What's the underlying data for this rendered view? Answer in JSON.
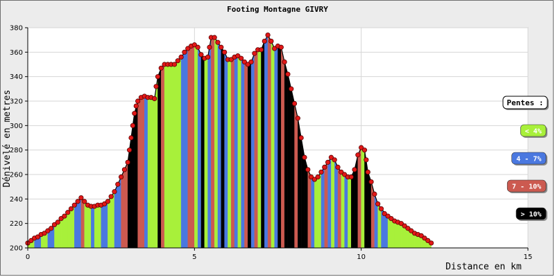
{
  "chart_data": {
    "type": "area",
    "title": "Footing Montagne GIVRY",
    "xlabel": "Distance en km",
    "ylabel": "Dénivelé en metres",
    "xlim": [
      0,
      15
    ],
    "ylim": [
      200,
      380
    ],
    "x_ticks": [
      0,
      5,
      10,
      15
    ],
    "y_ticks": [
      200,
      220,
      240,
      260,
      280,
      300,
      320,
      340,
      360,
      380
    ],
    "grid": "horizontal",
    "legend_position": "right",
    "legend": {
      "title": "Pentes :",
      "entries": [
        {
          "label": "< 4%",
          "color": "#a8f03a",
          "text_color": "#ffffff"
        },
        {
          "label": "4 - 7%",
          "color": "#4a78e0",
          "text_color": "#ffffff"
        },
        {
          "label": "7 - 10%",
          "color": "#cc5a50",
          "text_color": "#ffffff"
        },
        {
          "label": "> 10%",
          "color": "#000000",
          "text_color": "#ffffff"
        }
      ]
    },
    "series": [
      {
        "x": [
          0.0,
          0.2,
          0.4,
          0.6,
          0.8,
          1.0,
          1.2,
          1.4,
          1.6,
          1.7,
          1.8,
          1.9,
          2.0,
          2.2,
          2.4,
          2.6,
          2.8,
          3.0,
          3.1,
          3.2,
          3.3,
          3.4,
          3.5,
          3.6,
          3.8,
          3.9,
          4.0,
          4.1,
          4.2,
          4.4,
          4.6,
          4.8,
          5.0,
          5.1,
          5.2,
          5.3,
          5.4,
          5.5,
          5.6,
          5.7,
          5.8,
          5.9,
          6.0,
          6.1,
          6.2,
          6.3,
          6.4,
          6.5,
          6.6,
          6.7,
          6.8,
          6.9,
          7.0,
          7.1,
          7.2,
          7.3,
          7.4,
          7.5,
          7.6,
          7.7,
          7.8,
          7.9,
          8.0,
          8.1,
          8.2,
          8.3,
          8.4,
          8.5,
          8.6,
          8.7,
          8.8,
          8.9,
          9.0,
          9.1,
          9.2,
          9.3,
          9.4,
          9.5,
          9.6,
          9.7,
          9.8,
          9.9,
          10.0,
          10.1,
          10.2,
          10.3,
          10.4,
          10.5,
          10.6,
          10.8,
          11.0,
          11.2,
          11.4,
          11.6,
          11.8,
          12.0,
          12.1
        ],
        "y": [
          204,
          208,
          211,
          214,
          219,
          224,
          229,
          235,
          241,
          238,
          235,
          234,
          234,
          235,
          238,
          246,
          258,
          270,
          290,
          310,
          320,
          323,
          324,
          323,
          322,
          340,
          347,
          350,
          350,
          350,
          356,
          363,
          366,
          364,
          358,
          355,
          356,
          372,
          372,
          368,
          364,
          360,
          354,
          354,
          356,
          357,
          355,
          352,
          350,
          352,
          359,
          362,
          362,
          369,
          374,
          369,
          363,
          365,
          364,
          352,
          342,
          330,
          318,
          306,
          290,
          274,
          264,
          258,
          256,
          258,
          262,
          266,
          270,
          274,
          272,
          266,
          262,
          260,
          258,
          258,
          264,
          276,
          282,
          280,
          262,
          254,
          244,
          236,
          232,
          226,
          222,
          220,
          216,
          212,
          210,
          206,
          204
        ],
        "slope_class": [
          0,
          1,
          0,
          1,
          0,
          0,
          0,
          1,
          2,
          0,
          0,
          1,
          0,
          1,
          0,
          1,
          2,
          3,
          3,
          3,
          2,
          2,
          1,
          0,
          0,
          3,
          2,
          0,
          0,
          0,
          1,
          2,
          0,
          1,
          3,
          0,
          1,
          2,
          0,
          1,
          3,
          1,
          0,
          2,
          1,
          0,
          1,
          2,
          3,
          1,
          2,
          0,
          3,
          1,
          2,
          0,
          1,
          3,
          2,
          3,
          3,
          3,
          2,
          3,
          3,
          3,
          2,
          1,
          0,
          0,
          1,
          2,
          1,
          0,
          1,
          2,
          0,
          1,
          0,
          3,
          3,
          2,
          0,
          3,
          3,
          2,
          1,
          0,
          1,
          0,
          0,
          0,
          0,
          0,
          0,
          0
        ]
      }
    ],
    "points": [
      [
        0.0,
        204
      ],
      [
        0.1,
        206
      ],
      [
        0.2,
        208
      ],
      [
        0.3,
        209
      ],
      [
        0.4,
        211
      ],
      [
        0.5,
        212
      ],
      [
        0.6,
        214
      ],
      [
        0.7,
        216
      ],
      [
        0.8,
        219
      ],
      [
        0.9,
        221
      ],
      [
        1.0,
        224
      ],
      [
        1.1,
        226
      ],
      [
        1.2,
        229
      ],
      [
        1.3,
        232
      ],
      [
        1.4,
        235
      ],
      [
        1.5,
        238
      ],
      [
        1.6,
        241
      ],
      [
        1.7,
        238
      ],
      [
        1.8,
        235
      ],
      [
        1.9,
        234
      ],
      [
        2.0,
        234
      ],
      [
        2.1,
        235
      ],
      [
        2.2,
        235
      ],
      [
        2.3,
        236
      ],
      [
        2.4,
        238
      ],
      [
        2.5,
        242
      ],
      [
        2.6,
        246
      ],
      [
        2.7,
        252
      ],
      [
        2.8,
        258
      ],
      [
        2.9,
        264
      ],
      [
        3.0,
        270
      ],
      [
        3.05,
        280
      ],
      [
        3.1,
        290
      ],
      [
        3.15,
        300
      ],
      [
        3.2,
        310
      ],
      [
        3.25,
        316
      ],
      [
        3.3,
        320
      ],
      [
        3.4,
        323
      ],
      [
        3.5,
        324
      ],
      [
        3.6,
        323
      ],
      [
        3.7,
        323
      ],
      [
        3.8,
        322
      ],
      [
        3.85,
        332
      ],
      [
        3.9,
        340
      ],
      [
        4.0,
        347
      ],
      [
        4.1,
        350
      ],
      [
        4.2,
        350
      ],
      [
        4.3,
        350
      ],
      [
        4.4,
        350
      ],
      [
        4.5,
        353
      ],
      [
        4.6,
        356
      ],
      [
        4.7,
        360
      ],
      [
        4.8,
        363
      ],
      [
        4.9,
        365
      ],
      [
        5.0,
        366
      ],
      [
        5.1,
        364
      ],
      [
        5.2,
        358
      ],
      [
        5.3,
        355
      ],
      [
        5.4,
        356
      ],
      [
        5.45,
        364
      ],
      [
        5.5,
        372
      ],
      [
        5.6,
        372
      ],
      [
        5.7,
        368
      ],
      [
        5.8,
        364
      ],
      [
        5.9,
        360
      ],
      [
        6.0,
        354
      ],
      [
        6.1,
        354
      ],
      [
        6.2,
        356
      ],
      [
        6.3,
        357
      ],
      [
        6.4,
        355
      ],
      [
        6.5,
        352
      ],
      [
        6.6,
        350
      ],
      [
        6.7,
        352
      ],
      [
        6.8,
        359
      ],
      [
        6.9,
        362
      ],
      [
        7.0,
        362
      ],
      [
        7.1,
        369
      ],
      [
        7.2,
        374
      ],
      [
        7.3,
        369
      ],
      [
        7.4,
        363
      ],
      [
        7.5,
        365
      ],
      [
        7.6,
        364
      ],
      [
        7.7,
        352
      ],
      [
        7.8,
        342
      ],
      [
        7.9,
        330
      ],
      [
        8.0,
        318
      ],
      [
        8.1,
        306
      ],
      [
        8.2,
        290
      ],
      [
        8.3,
        274
      ],
      [
        8.4,
        264
      ],
      [
        8.5,
        258
      ],
      [
        8.6,
        256
      ],
      [
        8.7,
        258
      ],
      [
        8.8,
        262
      ],
      [
        8.9,
        266
      ],
      [
        9.0,
        270
      ],
      [
        9.1,
        274
      ],
      [
        9.2,
        272
      ],
      [
        9.3,
        266
      ],
      [
        9.4,
        262
      ],
      [
        9.5,
        260
      ],
      [
        9.6,
        258
      ],
      [
        9.7,
        258
      ],
      [
        9.8,
        264
      ],
      [
        9.9,
        276
      ],
      [
        10.0,
        282
      ],
      [
        10.1,
        280
      ],
      [
        10.15,
        272
      ],
      [
        10.2,
        262
      ],
      [
        10.3,
        254
      ],
      [
        10.4,
        244
      ],
      [
        10.5,
        236
      ],
      [
        10.6,
        232
      ],
      [
        10.7,
        228
      ],
      [
        10.8,
        226
      ],
      [
        10.9,
        224
      ],
      [
        11.0,
        222
      ],
      [
        11.1,
        221
      ],
      [
        11.2,
        220
      ],
      [
        11.3,
        218
      ],
      [
        11.4,
        216
      ],
      [
        11.5,
        214
      ],
      [
        11.6,
        212
      ],
      [
        11.7,
        211
      ],
      [
        11.8,
        210
      ],
      [
        11.9,
        208
      ],
      [
        12.0,
        206
      ],
      [
        12.1,
        204
      ]
    ]
  }
}
